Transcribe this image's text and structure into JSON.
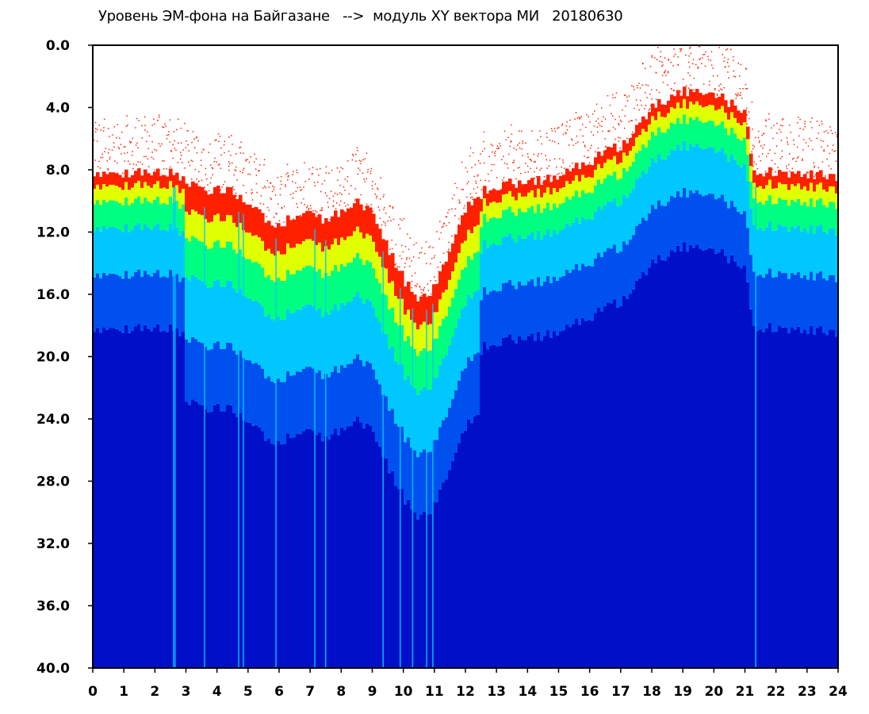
{
  "chart_data": {
    "type": "heatmap",
    "title": "Уровень ЭМ-фона на Байгазане   -->  модуль XY вектора МИ   20180630",
    "xlabel": "",
    "ylabel": "",
    "xlim": [
      0,
      24
    ],
    "ylim": [
      0.0,
      40.0
    ],
    "y_inverted": true,
    "x_tick_labels": [
      "0",
      "1",
      "2",
      "3",
      "4",
      "5",
      "6",
      "7",
      "8",
      "9",
      "10",
      "11",
      "12",
      "13",
      "14",
      "15",
      "16",
      "17",
      "18",
      "19",
      "20",
      "21",
      "22",
      "23",
      "24"
    ],
    "y_tick_labels": [
      "0.0",
      "4.0",
      "8.0",
      "12.0",
      "16.0",
      "20.0",
      "24.0",
      "28.0",
      "32.0",
      "36.0",
      "40.0"
    ],
    "grid": false,
    "colormap": [
      "#0010c8",
      "#0050f0",
      "#00c8ff",
      "#00ff80",
      "#e0ff00",
      "#ff2000"
    ],
    "upper_boundary_by_hour": [
      {
        "x": 0.0,
        "y": 8.3
      },
      {
        "x": 1.0,
        "y": 8.2
      },
      {
        "x": 2.0,
        "y": 8.2
      },
      {
        "x": 2.7,
        "y": 8.1
      },
      {
        "x": 3.0,
        "y": 8.8
      },
      {
        "x": 3.5,
        "y": 9.5
      },
      {
        "x": 4.0,
        "y": 9.0
      },
      {
        "x": 4.5,
        "y": 9.5
      },
      {
        "x": 5.0,
        "y": 10.0
      },
      {
        "x": 5.5,
        "y": 11.0
      },
      {
        "x": 6.0,
        "y": 11.5
      },
      {
        "x": 6.5,
        "y": 11.0
      },
      {
        "x": 7.0,
        "y": 10.5
      },
      {
        "x": 7.5,
        "y": 11.5
      },
      {
        "x": 8.0,
        "y": 10.5
      },
      {
        "x": 8.5,
        "y": 10.0
      },
      {
        "x": 9.0,
        "y": 10.5
      },
      {
        "x": 9.5,
        "y": 13.0
      },
      {
        "x": 10.0,
        "y": 15.0
      },
      {
        "x": 10.5,
        "y": 16.5
      },
      {
        "x": 11.0,
        "y": 15.5
      },
      {
        "x": 11.5,
        "y": 13.0
      },
      {
        "x": 12.0,
        "y": 10.5
      },
      {
        "x": 12.5,
        "y": 9.5
      },
      {
        "x": 13.0,
        "y": 9.0
      },
      {
        "x": 14.0,
        "y": 8.8
      },
      {
        "x": 15.0,
        "y": 8.5
      },
      {
        "x": 16.0,
        "y": 7.5
      },
      {
        "x": 17.0,
        "y": 6.5
      },
      {
        "x": 18.0,
        "y": 4.0
      },
      {
        "x": 19.0,
        "y": 3.0
      },
      {
        "x": 20.0,
        "y": 3.0
      },
      {
        "x": 21.0,
        "y": 4.5
      },
      {
        "x": 21.3,
        "y": 8.0
      },
      {
        "x": 22.0,
        "y": 8.2
      },
      {
        "x": 23.0,
        "y": 8.3
      },
      {
        "x": 24.0,
        "y": 8.4
      }
    ]
  }
}
